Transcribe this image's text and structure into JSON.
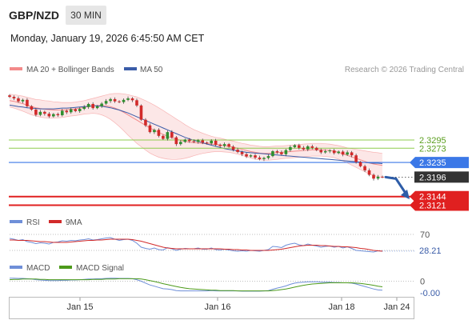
{
  "header": {
    "pair": "GBP/NZD",
    "timeframe": "30 MIN",
    "datetime": "Monday, January 19, 2026 6:45:50 AM CET",
    "copyright": "Research © 2026 Trading Central"
  },
  "colors": {
    "bollinger": "#f38a8a",
    "band_fill": "#fbe3e3",
    "ma50": "#3a5ca8",
    "candle_up": "#2f8f2f",
    "candle_down": "#d22a2a",
    "resistance": "#8fcc4f",
    "pivot": "#3b78e7",
    "support": "#e02020",
    "current": "#333333",
    "rsi": "#6f8fd8",
    "rsi_ma": "#d22a2a",
    "macd": "#6f8fd8",
    "macd_signal": "#4c9a1a",
    "arrow": "#2e5da8"
  },
  "chart_data": [
    {
      "type": "candlestick",
      "panel": "price",
      "legend": [
        {
          "name": "MA 20 + Bollinger Bands",
          "color": "#f38a8a"
        },
        {
          "name": "MA 50",
          "color": "#3a5ca8"
        }
      ],
      "ylim": [
        2.3105,
        2.3455
      ],
      "levels": [
        {
          "label": "2.3295",
          "value": 2.3295,
          "role": "resistance"
        },
        {
          "label": "2.3273",
          "value": 2.3273,
          "role": "resistance"
        },
        {
          "label": "2.3235",
          "value": 2.3235,
          "role": "pivot"
        },
        {
          "label": "2.3196",
          "value": 2.3196,
          "role": "current"
        },
        {
          "label": "2.3144",
          "value": 2.3144,
          "role": "support"
        },
        {
          "label": "2.3121",
          "value": 2.3121,
          "role": "support"
        }
      ],
      "projection": {
        "from": 2.3196,
        "to": 2.3137,
        "direction": "down"
      },
      "x_ticks": [
        "Jan 15",
        "Jan 16",
        "Jan 18",
        "Jan 24"
      ],
      "close": [
        2.341,
        2.3406,
        2.3398,
        2.3402,
        2.3385,
        2.3376,
        2.3362,
        2.337,
        2.3365,
        2.3358,
        2.3364,
        2.3361,
        2.3373,
        2.3369,
        2.3377,
        2.3372,
        2.3378,
        2.3383,
        2.3391,
        2.338,
        2.3385,
        2.3392,
        2.3399,
        2.3404,
        2.3398,
        2.3396,
        2.3402,
        2.3406,
        2.3401,
        2.3387,
        2.3349,
        2.3334,
        2.3316,
        2.3322,
        2.3306,
        2.3298,
        2.3316,
        2.3302,
        2.3284,
        2.329,
        2.3296,
        2.3292,
        2.329,
        2.3294,
        2.3288,
        2.3286,
        2.3293,
        2.3282,
        2.3279,
        2.3284,
        2.3277,
        2.3269,
        2.3263,
        2.3257,
        2.3251,
        2.3254,
        2.3248,
        2.3244,
        2.3247,
        2.3252,
        2.3265,
        2.3262,
        2.3257,
        2.3268,
        2.3276,
        2.3281,
        2.3274,
        2.327,
        2.3278,
        2.3274,
        2.3268,
        2.3262,
        2.3265,
        2.3267,
        2.326,
        2.3264,
        2.3256,
        2.3262,
        2.3254,
        2.3236,
        2.3225,
        2.3214,
        2.3202,
        2.3192,
        2.3197,
        2.3196
      ],
      "ma50": [
        2.3388,
        2.3386,
        2.3384,
        2.3383,
        2.3381,
        2.338,
        2.3379,
        2.3378,
        2.3378,
        2.3378,
        2.3378,
        2.3379,
        2.338,
        2.338,
        2.3381,
        2.3382,
        2.3383,
        2.3384,
        2.3385,
        2.3386,
        2.3386,
        2.3385,
        2.3383,
        2.3381,
        2.3378,
        2.3375,
        2.3371,
        2.3367,
        2.3362,
        2.3357,
        2.3352,
        2.3347,
        2.3342,
        2.3337,
        2.3332,
        2.3327,
        2.3322,
        2.3317,
        2.3312,
        2.3307,
        2.3302,
        2.3298,
        2.3294,
        2.3291,
        2.3288,
        2.3284,
        2.3281,
        2.3278,
        2.3275,
        2.3272,
        2.327,
        2.3268,
        2.3266,
        2.3264,
        2.3262,
        2.3261,
        2.326,
        2.3259,
        2.3258,
        2.3257,
        2.3256,
        2.3255,
        2.3254,
        2.3253,
        2.3252,
        2.3251,
        2.325,
        2.3249,
        2.3248,
        2.3247,
        2.3246,
        2.3245,
        2.3244,
        2.3243,
        2.3242,
        2.3241,
        2.324,
        2.3239,
        2.3238,
        2.3237,
        2.3236,
        2.3235,
        2.3234,
        2.3233,
        2.3233,
        2.3232
      ],
      "ma20": [
        2.34,
        2.3398,
        2.3395,
        2.3392,
        2.3388,
        2.3384,
        2.3381,
        2.3379,
        2.3377,
        2.3376,
        2.3375,
        2.3375,
        2.3375,
        2.3376,
        2.3377,
        2.3378,
        2.338,
        2.3382,
        2.3384,
        2.3386,
        2.3387,
        2.3387,
        2.3386,
        2.3384,
        2.338,
        2.3375,
        2.3369,
        2.3362,
        2.3355,
        2.3348,
        2.3341,
        2.3334,
        2.3327,
        2.3321,
        2.3315,
        2.331,
        2.3305,
        2.3301,
        2.3297,
        2.3294,
        2.3291,
        2.3289,
        2.3288,
        2.3287,
        2.3286,
        2.3285,
        2.3284,
        2.3283,
        2.3282,
        2.328,
        2.3278,
        2.3276,
        2.3273,
        2.327,
        2.3267,
        2.3264,
        2.3262,
        2.326,
        2.3259,
        2.3259,
        2.326,
        2.3261,
        2.3262,
        2.3263,
        2.3264,
        2.3265,
        2.3266,
        2.3267,
        2.3268,
        2.3269,
        2.3269,
        2.3269,
        2.3268,
        2.3267,
        2.3265,
        2.3262,
        2.3258,
        2.3254,
        2.325,
        2.3246,
        2.3242,
        2.3238,
        2.3234,
        2.3231,
        2.3229,
        2.3227
      ],
      "band_width": [
        0.0017,
        0.0018,
        0.0019,
        0.002,
        0.0021,
        0.0022,
        0.0022,
        0.0023,
        0.0023,
        0.0023,
        0.0022,
        0.0021,
        0.002,
        0.0019,
        0.0018,
        0.0018,
        0.0018,
        0.0018,
        0.0019,
        0.002,
        0.0022,
        0.0025,
        0.0029,
        0.0034,
        0.0039,
        0.0044,
        0.0049,
        0.0054,
        0.0058,
        0.0062,
        0.0064,
        0.0066,
        0.0067,
        0.0067,
        0.0066,
        0.0064,
        0.0061,
        0.0058,
        0.0054,
        0.005,
        0.0045,
        0.004,
        0.0035,
        0.0031,
        0.0027,
        0.0024,
        0.0021,
        0.0019,
        0.0018,
        0.0017,
        0.0016,
        0.0016,
        0.0016,
        0.0016,
        0.0017,
        0.0017,
        0.0018,
        0.0018,
        0.0018,
        0.0018,
        0.0018,
        0.0018,
        0.0017,
        0.0017,
        0.0017,
        0.0017,
        0.0017,
        0.0017,
        0.0017,
        0.0017,
        0.0017,
        0.0017,
        0.0017,
        0.0017,
        0.0017,
        0.0018,
        0.0019,
        0.002,
        0.0022,
        0.0024,
        0.0026,
        0.0028,
        0.003,
        0.0031,
        0.0032,
        0.0032
      ]
    },
    {
      "type": "line",
      "panel": "rsi",
      "legend": [
        {
          "name": "RSI",
          "color": "#6f8fd8"
        },
        {
          "name": "9MA",
          "color": "#d22a2a"
        }
      ],
      "ylim": [
        20,
        80
      ],
      "levels": [
        {
          "label": "70",
          "value": 70
        }
      ],
      "last_value_label": "28.21",
      "series": [
        {
          "name": "RSI",
          "values": [
            60,
            58,
            55,
            57,
            52,
            50,
            47,
            49,
            48,
            46,
            50,
            51,
            54,
            53,
            55,
            54,
            56,
            57,
            59,
            56,
            57,
            59,
            61,
            62,
            58,
            55,
            57,
            58,
            55,
            48,
            38,
            35,
            33,
            36,
            32,
            31,
            37,
            34,
            30,
            33,
            35,
            34,
            34,
            36,
            33,
            33,
            36,
            32,
            31,
            33,
            31,
            29,
            28,
            29,
            28,
            30,
            29,
            28,
            30,
            32,
            40,
            39,
            37,
            43,
            46,
            48,
            44,
            42,
            46,
            43,
            41,
            38,
            40,
            41,
            38,
            40,
            36,
            39,
            35,
            30,
            29,
            28,
            27,
            26,
            29,
            28
          ]
        },
        {
          "name": "9MA",
          "values": [
            56,
            56,
            55,
            55,
            55,
            54,
            53,
            52,
            52,
            51,
            50,
            50,
            50,
            50,
            51,
            52,
            53,
            54,
            55,
            55,
            56,
            56,
            57,
            58,
            58,
            58,
            58,
            58,
            57,
            55,
            53,
            50,
            47,
            44,
            41,
            38,
            36,
            35,
            34,
            34,
            34,
            34,
            34,
            34,
            34,
            34,
            34,
            34,
            34,
            33,
            33,
            32,
            32,
            31,
            31,
            30,
            30,
            30,
            30,
            30,
            31,
            32,
            33,
            35,
            37,
            39,
            41,
            42,
            43,
            43,
            43,
            42,
            42,
            41,
            40,
            40,
            39,
            39,
            38,
            37,
            35,
            34,
            32,
            30,
            29,
            28
          ]
        }
      ]
    },
    {
      "type": "line",
      "panel": "macd",
      "legend": [
        {
          "name": "MACD",
          "color": "#6f8fd8"
        },
        {
          "name": "MACD Signal",
          "color": "#4c9a1a"
        }
      ],
      "ylim": [
        -0.0045,
        0.0022
      ],
      "levels": [
        {
          "label": "0",
          "value": 0
        }
      ],
      "last_value_label": "-0.00",
      "series": [
        {
          "name": "MACD",
          "values": [
            0.001,
            0.001,
            0.0009,
            0.0009,
            0.0008,
            0.0007,
            0.0005,
            0.0004,
            0.0003,
            0.0002,
            0.0002,
            0.0002,
            0.0003,
            0.0003,
            0.0004,
            0.0004,
            0.0005,
            0.0006,
            0.0007,
            0.0007,
            0.0008,
            0.0008,
            0.0009,
            0.001,
            0.001,
            0.0009,
            0.0009,
            0.0009,
            0.0008,
            0.0005,
            0.0,
            -0.0006,
            -0.0012,
            -0.0016,
            -0.002,
            -0.0024,
            -0.0025,
            -0.0027,
            -0.003,
            -0.0031,
            -0.0031,
            -0.0031,
            -0.0031,
            -0.0031,
            -0.0031,
            -0.0031,
            -0.003,
            -0.0031,
            -0.0031,
            -0.0031,
            -0.0031,
            -0.0031,
            -0.0031,
            -0.0032,
            -0.0032,
            -0.0032,
            -0.0032,
            -0.0032,
            -0.0031,
            -0.003,
            -0.0026,
            -0.0022,
            -0.0019,
            -0.0015,
            -0.001,
            -0.0006,
            -0.0004,
            -0.0003,
            -0.0002,
            -0.0002,
            -0.0002,
            -0.0003,
            -0.0003,
            -0.0003,
            -0.0004,
            -0.0004,
            -0.0005,
            -0.0005,
            -0.0006,
            -0.0009,
            -0.0013,
            -0.0017,
            -0.0021,
            -0.0025,
            -0.0028,
            -0.0029
          ]
        },
        {
          "name": "MACD Signal",
          "values": [
            0.0005,
            0.0006,
            0.0006,
            0.0007,
            0.0007,
            0.0007,
            0.0007,
            0.0006,
            0.0006,
            0.0005,
            0.0005,
            0.0005,
            0.0005,
            0.0005,
            0.0005,
            0.0005,
            0.0005,
            0.0005,
            0.0005,
            0.0006,
            0.0006,
            0.0006,
            0.0007,
            0.0007,
            0.0007,
            0.0008,
            0.0008,
            0.0008,
            0.0008,
            0.0008,
            0.0007,
            0.0005,
            0.0002,
            -0.0001,
            -0.0004,
            -0.0008,
            -0.0011,
            -0.0014,
            -0.0017,
            -0.002,
            -0.0022,
            -0.0024,
            -0.0025,
            -0.0026,
            -0.0027,
            -0.0028,
            -0.0029,
            -0.0029,
            -0.003,
            -0.003,
            -0.003,
            -0.003,
            -0.0031,
            -0.0031,
            -0.0031,
            -0.0031,
            -0.0031,
            -0.0031,
            -0.0031,
            -0.0031,
            -0.003,
            -0.0029,
            -0.0027,
            -0.0025,
            -0.0022,
            -0.0019,
            -0.0016,
            -0.0013,
            -0.0011,
            -0.0009,
            -0.0008,
            -0.0007,
            -0.0006,
            -0.0005,
            -0.0005,
            -0.0005,
            -0.0005,
            -0.0005,
            -0.0005,
            -0.0006,
            -0.0007,
            -0.0009,
            -0.0011,
            -0.0013,
            -0.0016,
            -0.0018
          ]
        }
      ]
    }
  ]
}
